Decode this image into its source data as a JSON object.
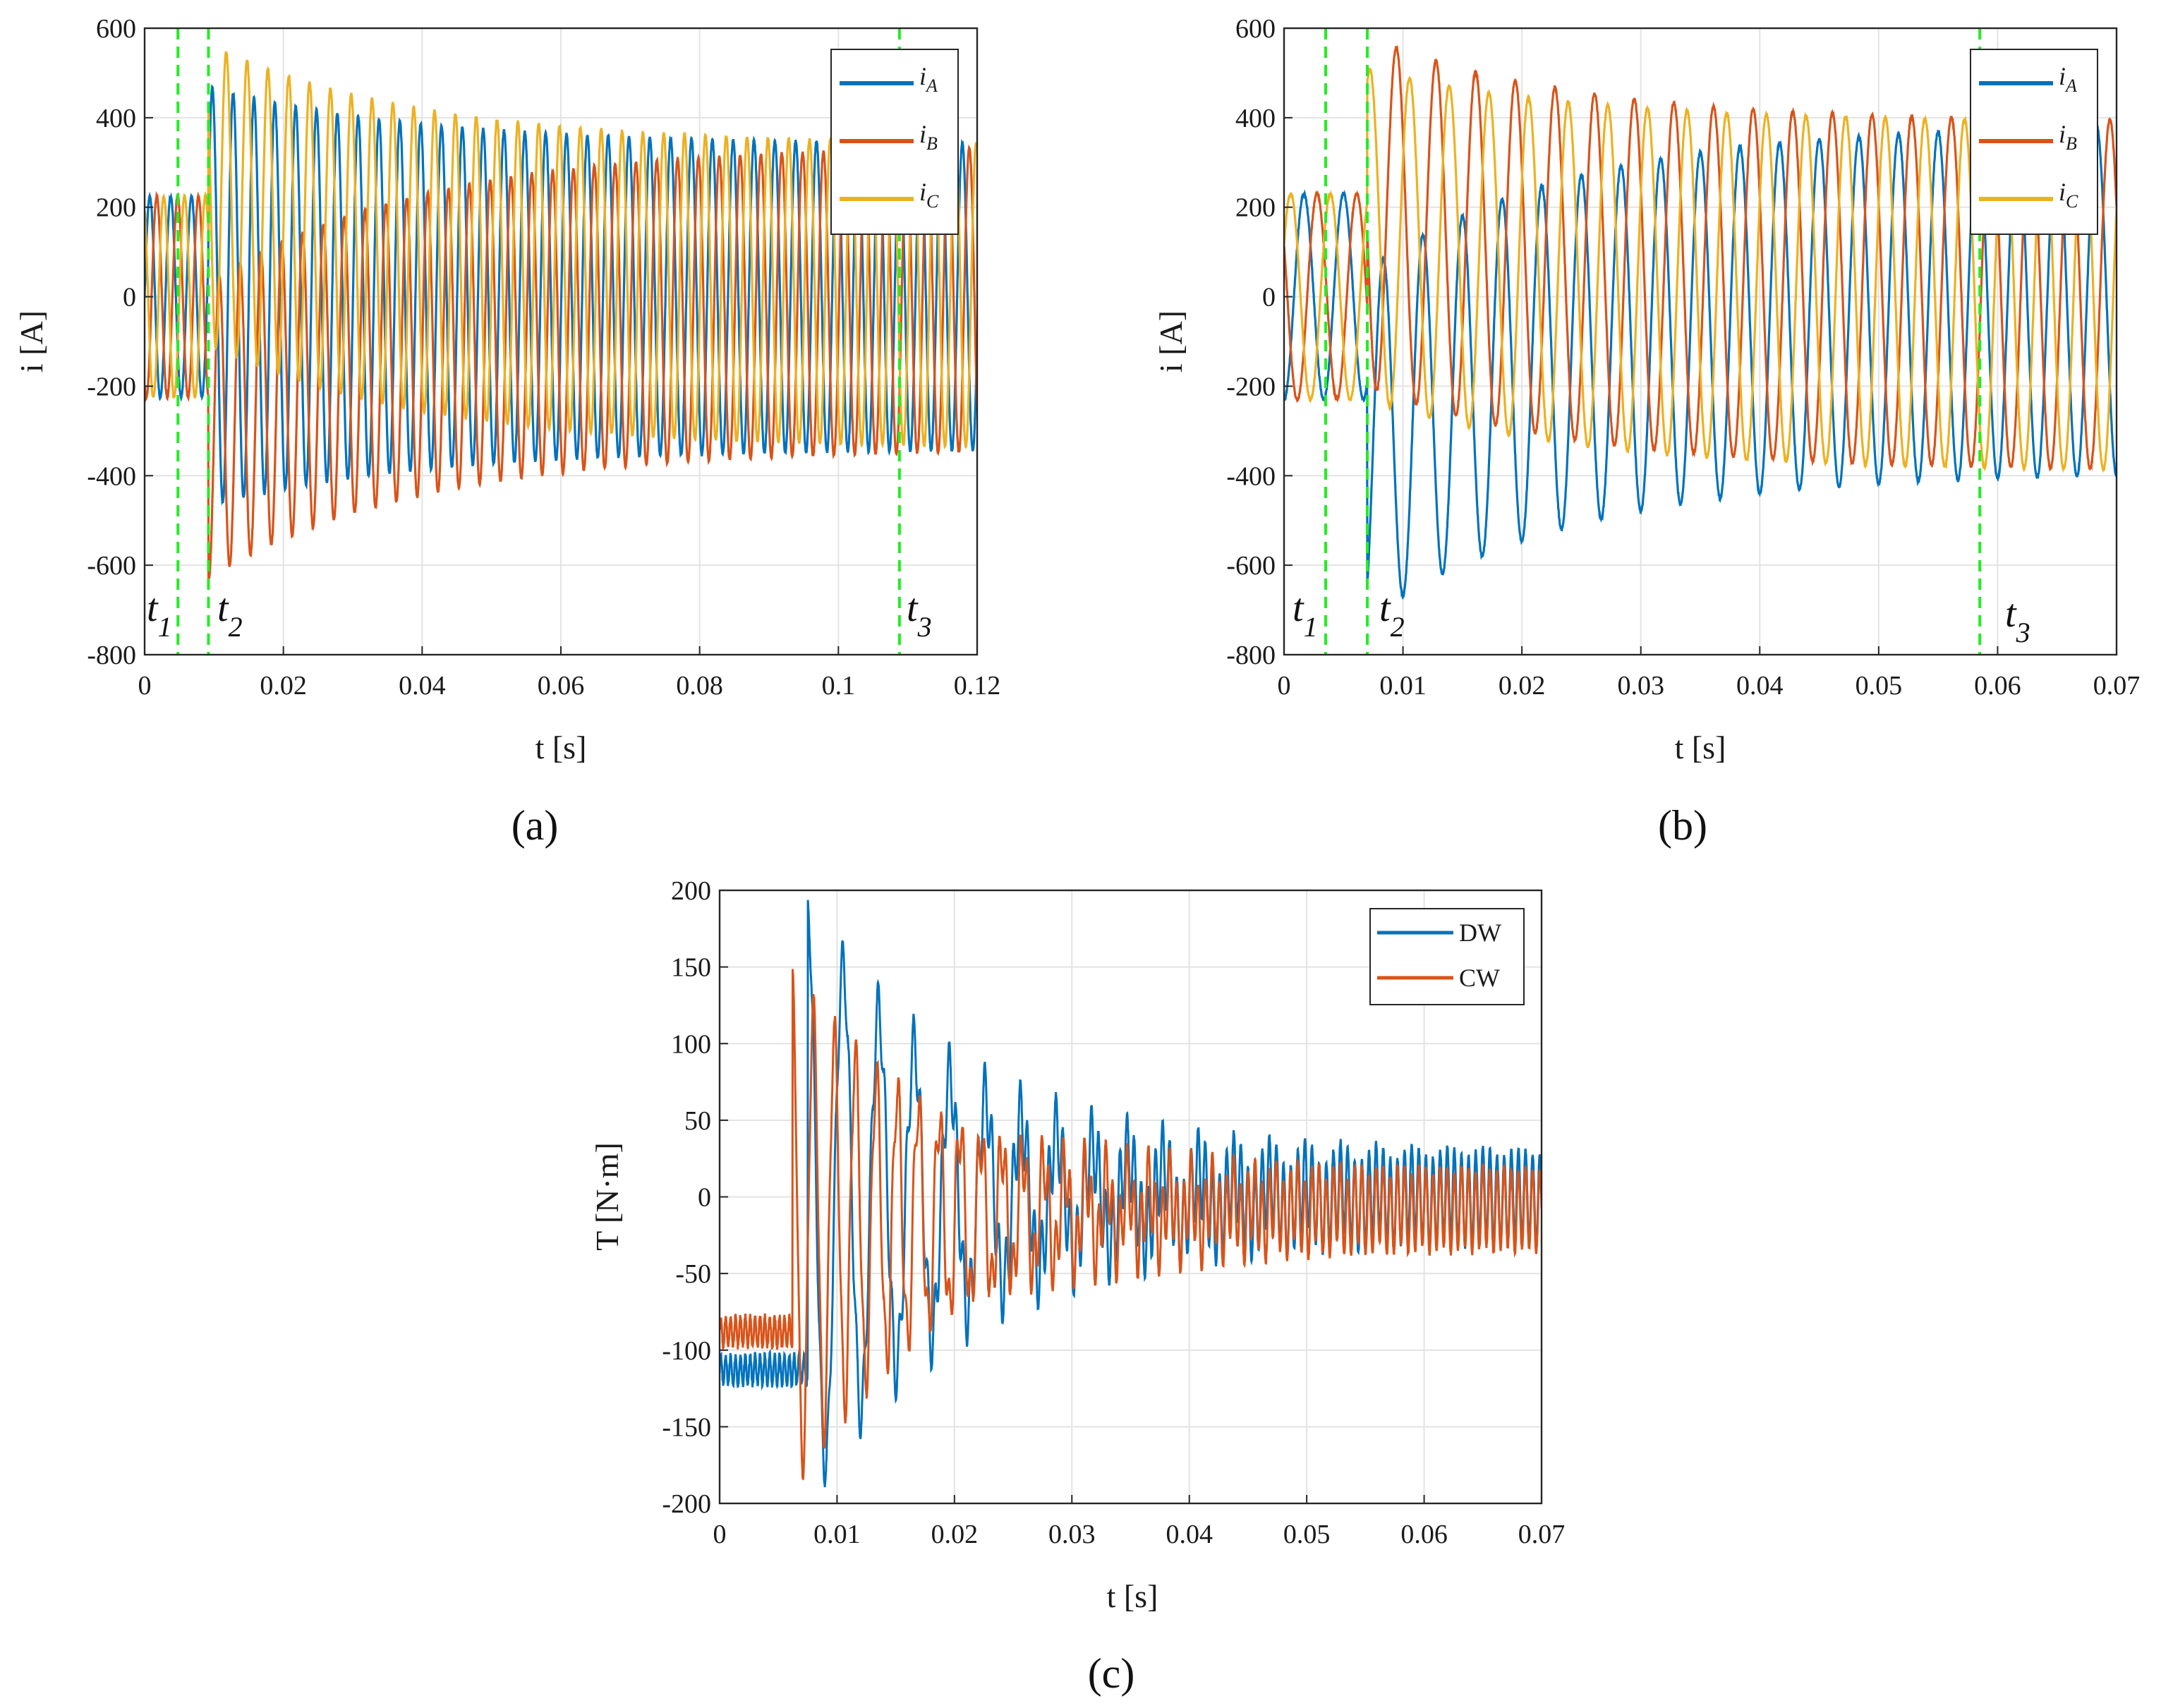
{
  "colors": {
    "blue": "#0072BD",
    "orange": "#D95319",
    "yellow": "#EDB120",
    "marker_green": "#22ee22"
  },
  "chart_data": [
    {
      "id": "a",
      "type": "line",
      "caption": "(a)",
      "xlabel": "t [s]",
      "ylabel": "i [A]",
      "xlim": [
        0,
        0.12
      ],
      "ylim": [
        -800,
        600
      ],
      "xticks": [
        0,
        0.02,
        0.04,
        0.06,
        0.08,
        0.1,
        0.12
      ],
      "xtick_labels": [
        "0",
        "0.02",
        "0.04",
        "0.06",
        "0.08",
        "0.1",
        "0.12"
      ],
      "yticks": [
        -800,
        -600,
        -400,
        -200,
        0,
        200,
        400,
        600
      ],
      "ytick_labels": [
        "-800",
        "-600",
        "-400",
        "-200",
        "0",
        "200",
        "400",
        "600"
      ],
      "grid": true,
      "legend_position": "top-right",
      "series": [
        {
          "name": "iA",
          "label_main": "i",
          "label_sub": "A",
          "color": "#0072BD",
          "frequency_hz": 333,
          "phase_deg": 0,
          "pre_fault_amplitude_A": 225,
          "steady_amplitude_A": 340,
          "peak_after_fault_A": 470,
          "dc_offset_start_A": 0
        },
        {
          "name": "iB",
          "label_main": "i",
          "label_sub": "B",
          "color": "#D95319",
          "frequency_hz": 333,
          "phase_deg": -120,
          "pre_fault_amplitude_A": 225,
          "steady_amplitude_A": 340,
          "peak_after_fault_A": -630,
          "dc_offset_start_A": -300
        },
        {
          "name": "iC",
          "label_main": "i",
          "label_sub": "C",
          "color": "#EDB120",
          "frequency_hz": 333,
          "phase_deg": 120,
          "pre_fault_amplitude_A": 225,
          "steady_amplitude_A": 340,
          "peak_after_fault_A": 565,
          "dc_offset_start_A": 230
        }
      ],
      "markers": [
        {
          "label": "t",
          "sub": "1",
          "x": 0.0048
        },
        {
          "label": "t",
          "sub": "2",
          "x": 0.0092
        },
        {
          "label": "t",
          "sub": "3",
          "x": 0.1088
        }
      ]
    },
    {
      "id": "b",
      "type": "line",
      "caption": "(b)",
      "xlabel": "t [s]",
      "ylabel": "i [A]",
      "xlim": [
        0,
        0.07
      ],
      "ylim": [
        -800,
        600
      ],
      "xticks": [
        0,
        0.01,
        0.02,
        0.03,
        0.04,
        0.05,
        0.06,
        0.07
      ],
      "xtick_labels": [
        "0",
        "0.01",
        "0.02",
        "0.03",
        "0.04",
        "0.05",
        "0.06",
        "0.07"
      ],
      "yticks": [
        -800,
        -600,
        -400,
        -200,
        0,
        200,
        400,
        600
      ],
      "ytick_labels": [
        "-800",
        "-600",
        "-400",
        "-200",
        "0",
        "200",
        "400",
        "600"
      ],
      "grid": true,
      "legend_position": "top-right",
      "series": [
        {
          "name": "iA",
          "label_main": "i",
          "label_sub": "A",
          "color": "#0072BD",
          "frequency_hz": 300,
          "phase_deg": -90,
          "pre_fault_amplitude_A": 230,
          "steady_amplitude_A": 390,
          "peak_after_fault_A": -720,
          "dc_offset_start_A": -330
        },
        {
          "name": "iB",
          "label_main": "i",
          "label_sub": "B",
          "color": "#D95319",
          "frequency_hz": 300,
          "phase_deg": 150,
          "pre_fault_amplitude_A": 230,
          "steady_amplitude_A": 390,
          "peak_after_fault_A": 580,
          "dc_offset_start_A": 190
        },
        {
          "name": "iC",
          "label_main": "i",
          "label_sub": "C",
          "color": "#EDB120",
          "frequency_hz": 300,
          "phase_deg": 30,
          "pre_fault_amplitude_A": 230,
          "steady_amplitude_A": 390,
          "peak_after_fault_A": 510,
          "dc_offset_start_A": 140
        }
      ],
      "markers": [
        {
          "label": "t",
          "sub": "1",
          "x": 0.0035
        },
        {
          "label": "t",
          "sub": "2",
          "x": 0.007
        },
        {
          "label": "t",
          "sub": "3",
          "x": 0.0585
        }
      ]
    },
    {
      "id": "c",
      "type": "line",
      "caption": "(c)",
      "xlabel": "t [s]",
      "ylabel": "T [N·m]",
      "xlim": [
        0,
        0.07
      ],
      "ylim": [
        -200,
        200
      ],
      "xticks": [
        0,
        0.01,
        0.02,
        0.03,
        0.04,
        0.05,
        0.06,
        0.07
      ],
      "xtick_labels": [
        "0",
        "0.01",
        "0.02",
        "0.03",
        "0.04",
        "0.05",
        "0.06",
        "0.07"
      ],
      "yticks": [
        -200,
        -150,
        -100,
        -50,
        0,
        50,
        100,
        150,
        200
      ],
      "ytick_labels": [
        "-200",
        "-150",
        "-100",
        "-50",
        "0",
        "50",
        "100",
        "150",
        "200"
      ],
      "grid": true,
      "legend_position": "top-right",
      "series": [
        {
          "name": "DW",
          "label": "DW",
          "color": "#0072BD",
          "pre_fault_mean": -113,
          "fault_time_s": 0.0075,
          "first_peak_max": 188,
          "first_peak_min": -195,
          "oscillation_hz": 330,
          "final_mean": 0,
          "final_band": [
            -35,
            25
          ]
        },
        {
          "name": "CW",
          "label": "CW",
          "color": "#D95319",
          "pre_fault_mean": -88,
          "fault_time_s": 0.0062,
          "first_peak_max": 138,
          "first_peak_min": -183,
          "oscillation_hz": 560,
          "final_mean": -8,
          "final_band": [
            -35,
            18
          ]
        }
      ]
    }
  ]
}
